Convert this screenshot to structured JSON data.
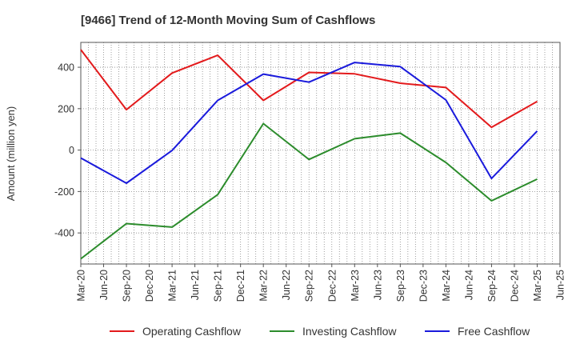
{
  "chart_data": {
    "type": "line",
    "title": "[9466]  Trend of 12-Month Moving Sum of Cashflows",
    "xlabel": "",
    "ylabel": "Amount (million yen)",
    "x": [
      "Mar-20",
      "Jun-20",
      "Sep-20",
      "Dec-20",
      "Mar-21",
      "Jun-21",
      "Sep-21",
      "Dec-21",
      "Mar-22",
      "Jun-22",
      "Sep-22",
      "Dec-22",
      "Mar-23",
      "Jun-23",
      "Sep-23",
      "Dec-23",
      "Mar-24",
      "Jun-24",
      "Sep-24",
      "Dec-24",
      "Mar-25",
      "Jun-25"
    ],
    "ylim": [
      -550,
      520
    ],
    "yticks": [
      -400,
      -200,
      0,
      200,
      400
    ],
    "ytick_labels": [
      "-400",
      "-200",
      "0",
      "200",
      "400"
    ],
    "grid": true,
    "legend_position": "bottom",
    "series": [
      {
        "name": "Operating Cashflow",
        "color": "#e31a1c",
        "x": [
          "Mar-20",
          "Sep-20",
          "Mar-21",
          "Sep-21",
          "Mar-22",
          "Sep-22",
          "Mar-23",
          "Sep-23",
          "Mar-24",
          "Sep-24",
          "Mar-25"
        ],
        "values": [
          485,
          195,
          372,
          458,
          240,
          375,
          368,
          323,
          302,
          110,
          235
        ]
      },
      {
        "name": "Investing Cashflow",
        "color": "#2c8c2c",
        "x": [
          "Mar-20",
          "Sep-20",
          "Mar-21",
          "Sep-21",
          "Mar-22",
          "Sep-22",
          "Mar-23",
          "Sep-23",
          "Mar-24",
          "Sep-24",
          "Mar-25"
        ],
        "values": [
          -525,
          -355,
          -372,
          -215,
          128,
          -45,
          55,
          82,
          -60,
          -245,
          -140
        ]
      },
      {
        "name": "Free Cashflow",
        "color": "#1a1adc",
        "x": [
          "Mar-20",
          "Sep-20",
          "Mar-21",
          "Sep-21",
          "Mar-22",
          "Sep-22",
          "Mar-23",
          "Sep-23",
          "Mar-24",
          "Sep-24",
          "Mar-25"
        ],
        "values": [
          -38,
          -160,
          -2,
          240,
          367,
          328,
          423,
          403,
          242,
          -137,
          92
        ]
      }
    ]
  }
}
